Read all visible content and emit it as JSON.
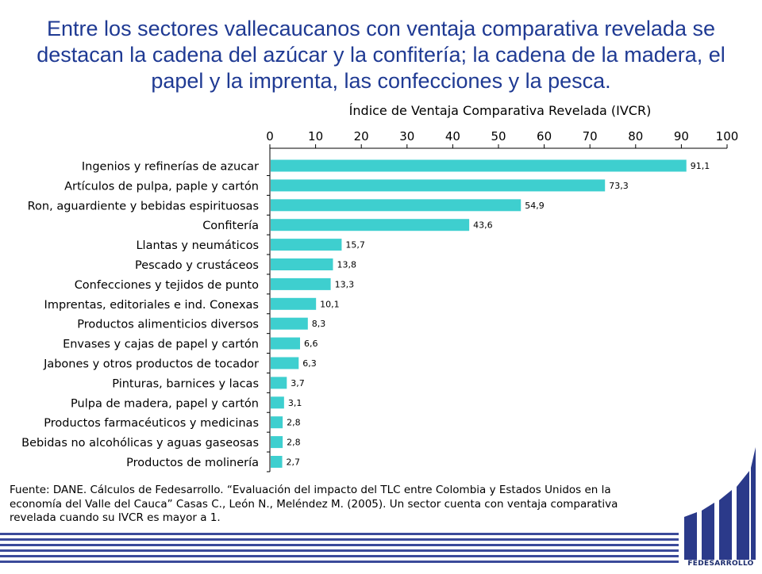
{
  "headline": "Entre los sectores vallecaucanos con ventaja comparativa revelada se destacan la cadena del azúcar y la confitería; la cadena de la madera, el papel y la imprenta, las confecciones y la pesca.",
  "chart_data": {
    "type": "bar",
    "orientation": "horizontal",
    "title": "Índice de Ventaja Comparativa Revelada (IVCR)",
    "xlim": [
      0,
      100
    ],
    "xticks": [
      0,
      10,
      20,
      30,
      40,
      50,
      60,
      70,
      80,
      90,
      100
    ],
    "x_axis_position": "top",
    "grid": false,
    "bar_color": "#3ecfcf",
    "categories": [
      "Ingenios y refinerías de azucar",
      "Artículos de pulpa, paple y cartón",
      "Ron, aguardiente y bebidas espirituosas",
      "Confitería",
      "Llantas y neumáticos",
      "Pescado y crustáceos",
      "Confecciones y tejidos de punto",
      "Imprentas, editoriales e ind. Conexas",
      "Productos alimenticios diversos",
      "Envases y cajas de papel y cartón",
      "Jabones y otros productos de tocador",
      "Pinturas, barnices y lacas",
      "Pulpa de madera, papel y cartón",
      "Productos farmacéuticos y medicinas",
      "Bebidas no alcohólicas y aguas gaseosas",
      "Productos de molinería"
    ],
    "values": [
      91.1,
      73.3,
      54.9,
      43.6,
      15.7,
      13.8,
      13.3,
      10.1,
      8.3,
      6.6,
      6.3,
      3.7,
      3.1,
      2.8,
      2.8,
      2.7
    ],
    "value_labels": [
      "91,1",
      "73,3",
      "54,9",
      "43,6",
      "15,7",
      "13,8",
      "13,3",
      "10,1",
      "8,3",
      "6,6",
      "6,3",
      "3,7",
      "3,1",
      "2,8",
      "2,8",
      "2,7"
    ]
  },
  "footnote": "Fuente: DANE. Cálculos de Fedesarrollo. “Evaluación del impacto del TLC entre Colombia y Estados Unidos en la economía del Valle del Cauca” Casas C., León N., Meléndez M. (2005). Un sector cuenta con ventaja comparativa revelada cuando su IVCR es mayor a 1.",
  "logo": {
    "text": "FEDESARROLLO",
    "color": "#1a2a6c"
  },
  "colors": {
    "headline": "#1f3a93",
    "band": "#3b4a9a"
  }
}
